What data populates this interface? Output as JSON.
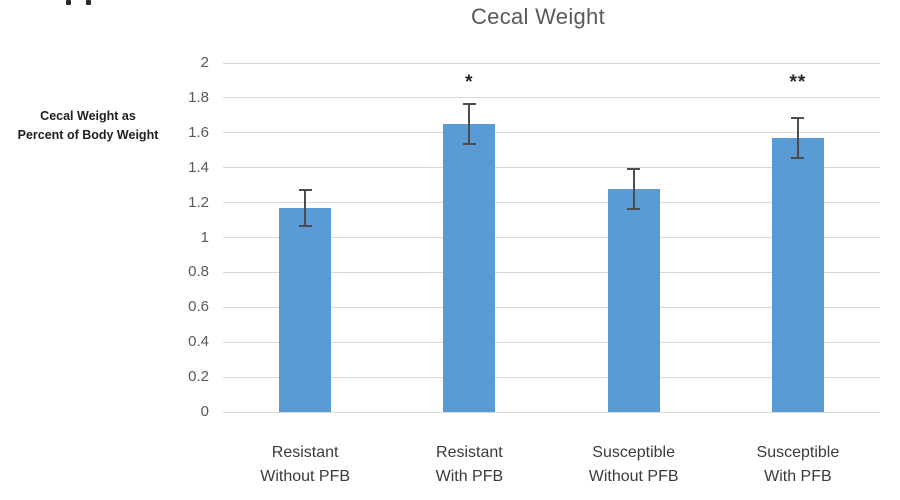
{
  "chart_data": {
    "type": "bar",
    "title": "Cecal Weight",
    "ylabel_lines": [
      "Cecal Weight  as",
      "Percent of Body Weight"
    ],
    "xlabel": "",
    "categories": [
      {
        "line1": "Resistant",
        "line2": "Without PFB"
      },
      {
        "line1": "Resistant",
        "line2": "With PFB"
      },
      {
        "line1": "Susceptible",
        "line2": "Without PFB"
      },
      {
        "line1": "Susceptible",
        "line2": "With PFB"
      }
    ],
    "values": [
      1.17,
      1.65,
      1.28,
      1.57
    ],
    "error_bars": [
      0.11,
      0.12,
      0.12,
      0.12
    ],
    "significance_markers": [
      "",
      "*",
      "",
      "**"
    ],
    "significance_marker_y": 1.9,
    "ylim": [
      0,
      2
    ],
    "ytick_labels": [
      "0",
      "0.2",
      "0.4",
      "0.6",
      "0.8",
      "1",
      "1.2",
      "1.4",
      "1.6",
      "1.8",
      "2"
    ],
    "grid": true,
    "legend": "none",
    "colors": {
      "bar": "#5B9BD5",
      "gridline": "#D9D9D9",
      "axis_line": "#D9D9D9",
      "error_bar": "#4D4D4D",
      "title_text": "#595959",
      "tick_text": "#595959",
      "category_text": "#3B3B3B",
      "ylabel_text": "#1F1F1F",
      "marker_text": "#262626"
    }
  }
}
